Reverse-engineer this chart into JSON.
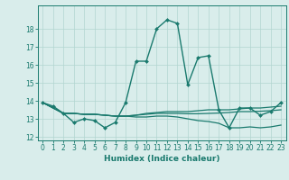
{
  "xlabel": "Humidex (Indice chaleur)",
  "x": [
    0,
    1,
    2,
    3,
    4,
    5,
    6,
    7,
    8,
    9,
    10,
    11,
    12,
    13,
    14,
    15,
    16,
    17,
    18,
    19,
    20,
    21,
    22,
    23
  ],
  "lines": [
    {
      "y": [
        13.9,
        13.7,
        13.3,
        12.8,
        13.0,
        12.9,
        12.5,
        12.8,
        13.9,
        16.2,
        16.2,
        18.0,
        18.5,
        18.3,
        14.9,
        16.4,
        16.5,
        13.5,
        12.5,
        13.6,
        13.6,
        13.2,
        13.4,
        13.9
      ],
      "color": "#1a7a6e",
      "linewidth": 1.0,
      "marker": "D",
      "markersize": 2.0
    },
    {
      "y": [
        13.9,
        13.6,
        13.3,
        13.3,
        13.25,
        13.25,
        13.2,
        13.15,
        13.15,
        13.2,
        13.3,
        13.35,
        13.4,
        13.4,
        13.4,
        13.45,
        13.5,
        13.5,
        13.5,
        13.55,
        13.6,
        13.6,
        13.65,
        13.7
      ],
      "color": "#1a7a6e",
      "linewidth": 0.9,
      "marker": null,
      "markersize": 0
    },
    {
      "y": [
        13.9,
        13.6,
        13.3,
        13.3,
        13.25,
        13.25,
        13.2,
        13.15,
        13.15,
        13.2,
        13.25,
        13.3,
        13.3,
        13.3,
        13.28,
        13.28,
        13.3,
        13.32,
        13.35,
        13.4,
        13.4,
        13.42,
        13.45,
        13.5
      ],
      "color": "#1a7a6e",
      "linewidth": 0.9,
      "marker": null,
      "markersize": 0
    },
    {
      "y": [
        13.9,
        13.6,
        13.3,
        13.3,
        13.25,
        13.25,
        13.2,
        13.15,
        13.15,
        13.1,
        13.1,
        13.15,
        13.15,
        13.1,
        13.0,
        12.9,
        12.85,
        12.75,
        12.5,
        12.5,
        12.55,
        12.5,
        12.55,
        12.65
      ],
      "color": "#1a7a6e",
      "linewidth": 0.9,
      "marker": null,
      "markersize": 0
    }
  ],
  "xlim": [
    -0.5,
    23.5
  ],
  "ylim": [
    11.8,
    19.3
  ],
  "yticks": [
    12,
    13,
    14,
    15,
    16,
    17,
    18
  ],
  "xticks": [
    0,
    1,
    2,
    3,
    4,
    5,
    6,
    7,
    8,
    9,
    10,
    11,
    12,
    13,
    14,
    15,
    16,
    17,
    18,
    19,
    20,
    21,
    22,
    23
  ],
  "background_color": "#d9edeb",
  "grid_color": "#b2d5d0",
  "line_color": "#1a7a6e",
  "tick_fontsize": 5.5,
  "label_fontsize": 6.5
}
